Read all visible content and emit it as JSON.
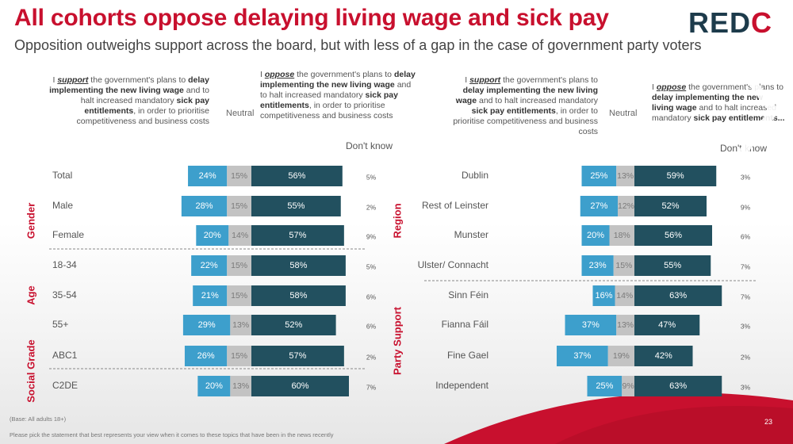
{
  "title": "All cohorts oppose delaying living wage and sick pay",
  "subtitle": "Opposition outweighs support across the board, but with less of a gap in the case of government party voters",
  "logo": {
    "text_main": "RED",
    "text_accent": "C"
  },
  "header": {
    "left_support": [
      "I ",
      "support",
      " the government's plans to ",
      "delay implementing the new living wage",
      " and to halt increased mandatory ",
      "sick pay entitlements",
      ", in order to prioritise competitiveness and business costs"
    ],
    "left_oppose": [
      "I ",
      "oppose",
      " the government's plans to ",
      "delay implementing the new living wage",
      " and to halt increased mandatory ",
      "sick pay entitlements",
      ", in order to prioritise competitiveness and business costs"
    ],
    "right_support": [
      "I ",
      "support",
      " the government's plans to ",
      "delay implementing the new living wage",
      " and to halt increased mandatory ",
      "sick pay entitlements",
      ", in order to prioritise competitiveness and business costs"
    ],
    "right_oppose": [
      "I ",
      "oppose",
      " the government's plans to ",
      "delay implementing the new living wage",
      " and to halt increased mandatory ",
      "sick pay entitlements..."
    ],
    "neutral": "Neutral",
    "dont_know": "Don't know"
  },
  "colors": {
    "support": "#3d9fcc",
    "neutral": "#c3c3c3",
    "oppose": "#22505f",
    "brand_red": "#c8102e",
    "divider": "#888888"
  },
  "chart_data": [
    {
      "type": "bar",
      "stacking": "diverging",
      "series_names": [
        "support",
        "neutral",
        "oppose",
        "dont_know"
      ],
      "groups": [
        {
          "label": "",
          "categories": [
            "Total"
          ]
        },
        {
          "label": "Gender",
          "categories": [
            "Male",
            "Female"
          ]
        },
        {
          "label": "Age",
          "categories": [
            "18-34",
            "35-54",
            "55+"
          ]
        },
        {
          "label": "Social Grade",
          "categories": [
            "ABC1",
            "C2DE"
          ]
        }
      ],
      "rows": [
        {
          "label": "Total",
          "support": 24,
          "neutral": 15,
          "oppose": 56,
          "dont_know": 5
        },
        {
          "label": "Male",
          "support": 28,
          "neutral": 15,
          "oppose": 55,
          "dont_know": 2
        },
        {
          "label": "Female",
          "support": 20,
          "neutral": 14,
          "oppose": 57,
          "dont_know": 9
        },
        {
          "label": "18-34",
          "support": 22,
          "neutral": 15,
          "oppose": 58,
          "dont_know": 5
        },
        {
          "label": "35-54",
          "support": 21,
          "neutral": 15,
          "oppose": 58,
          "dont_know": 6
        },
        {
          "label": "55+",
          "support": 29,
          "neutral": 13,
          "oppose": 52,
          "dont_know": 6
        },
        {
          "label": "ABC1",
          "support": 26,
          "neutral": 15,
          "oppose": 57,
          "dont_know": 2
        },
        {
          "label": "C2DE",
          "support": 20,
          "neutral": 13,
          "oppose": 60,
          "dont_know": 7
        }
      ]
    },
    {
      "type": "bar",
      "stacking": "diverging",
      "series_names": [
        "support",
        "neutral",
        "oppose",
        "dont_know"
      ],
      "groups": [
        {
          "label": "Region",
          "categories": [
            "Dublin",
            "Rest of Leinster",
            "Munster",
            "Ulster/ Connacht"
          ]
        },
        {
          "label": "Party Support",
          "categories": [
            "Sinn Féin",
            "Fianna Fáil",
            "Fine Gael",
            "Independent"
          ]
        }
      ],
      "rows": [
        {
          "label": "Dublin",
          "support": 25,
          "neutral": 13,
          "oppose": 59,
          "dont_know": 3
        },
        {
          "label": "Rest of Leinster",
          "support": 27,
          "neutral": 12,
          "oppose": 52,
          "dont_know": 9
        },
        {
          "label": "Munster",
          "support": 20,
          "neutral": 18,
          "oppose": 56,
          "dont_know": 6
        },
        {
          "label": "Ulster/ Connacht",
          "support": 23,
          "neutral": 15,
          "oppose": 55,
          "dont_know": 7
        },
        {
          "label": "Sinn Féin",
          "support": 16,
          "neutral": 14,
          "oppose": 63,
          "dont_know": 7
        },
        {
          "label": "Fianna Fáil",
          "support": 37,
          "neutral": 13,
          "oppose": 47,
          "dont_know": 3
        },
        {
          "label": "Fine Gael",
          "support": 37,
          "neutral": 19,
          "oppose": 42,
          "dont_know": 2
        },
        {
          "label": "Independent",
          "support": 25,
          "neutral": 9,
          "oppose": 63,
          "dont_know": 3
        }
      ]
    }
  ],
  "footer": {
    "base": "(Base: All adults 18+)",
    "question": "Please pick the statement that best represents your view when it comes to these topics that have been in the news recently",
    "page": "23"
  }
}
